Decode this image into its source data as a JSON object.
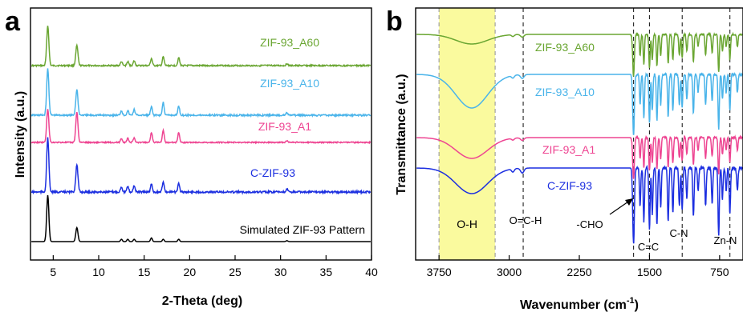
{
  "chart_data": [
    {
      "panel": "a",
      "type": "line",
      "xlabel": "2-Theta (deg)",
      "ylabel": "Intensity (a.u.)",
      "xlim": [
        2.5,
        40
      ],
      "xticks": [
        "5",
        "10",
        "15",
        "20",
        "25",
        "30",
        "35",
        "40"
      ],
      "grid": false,
      "peaks_deg": [
        4.4,
        7.6,
        12.5,
        13.2,
        13.9,
        15.8,
        17.1,
        18.8,
        30.7
      ],
      "series": [
        {
          "name": "ZIF-93_A60",
          "color": "#6aa632",
          "label_pos": "right",
          "intensity": [
            1.0,
            0.5,
            0.1,
            0.1,
            0.12,
            0.18,
            0.22,
            0.2,
            0.05
          ]
        },
        {
          "name": "ZIF-93_A10",
          "color": "#4ab4ea",
          "label_pos": "right",
          "intensity": [
            1.0,
            0.55,
            0.1,
            0.1,
            0.12,
            0.18,
            0.28,
            0.2,
            0.05
          ]
        },
        {
          "name": "ZIF-93_A1",
          "color": "#ee4592",
          "label_pos": "right",
          "intensity": [
            1.0,
            0.9,
            0.12,
            0.12,
            0.14,
            0.3,
            0.35,
            0.3,
            0.05
          ]
        },
        {
          "name": "C-ZIF-93",
          "color": "#1c2fe0",
          "label_pos": "right",
          "intensity": [
            1.0,
            0.5,
            0.1,
            0.1,
            0.12,
            0.15,
            0.2,
            0.15,
            0.05
          ]
        },
        {
          "name": "Simulated ZIF-93 Pattern",
          "color": "#000000",
          "label_pos": "right",
          "intensity": [
            1.0,
            0.3,
            0.05,
            0.05,
            0.05,
            0.08,
            0.05,
            0.05,
            0.02
          ]
        }
      ]
    },
    {
      "panel": "b",
      "type": "line",
      "xlabel": "Wavenumber (cm",
      "xlabel_sup": "-1",
      "xlabel_tail": ")",
      "ylabel": "Transmittance (a.u.)",
      "xlim": [
        4000,
        500
      ],
      "x_reversed": true,
      "xticks": [
        "3750",
        "3000",
        "2250",
        "1500",
        "750"
      ],
      "grid": false,
      "highlight_band": {
        "from": 3750,
        "to": 3150,
        "label": "O-H",
        "color": "#fafa9e"
      },
      "dashed_lines": [
        3750,
        3150,
        2850,
        1670,
        1500,
        1150,
        640
      ],
      "annotations": [
        "O=C-H",
        "-CHO",
        "C=C",
        "C-N",
        "Zn-N"
      ],
      "series": [
        {
          "name": "ZIF-93_A60",
          "color": "#6aa632"
        },
        {
          "name": "ZIF-93_A10",
          "color": "#4ab4ea"
        },
        {
          "name": "ZIF-93_A1",
          "color": "#ee4592"
        },
        {
          "name": "C-ZIF-93",
          "color": "#1c2fe0"
        }
      ]
    }
  ]
}
